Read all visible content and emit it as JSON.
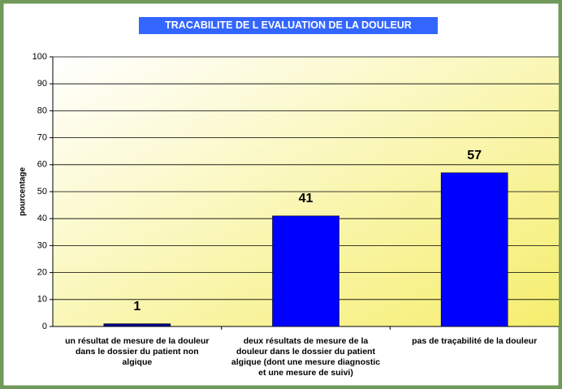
{
  "chart_data": {
    "type": "bar",
    "title": "TRACABILITE DE L EVALUATION DE LA DOULEUR",
    "ylabel": "pourcentage",
    "categories": [
      "un résultat de mesure de la douleur dans le dossier du patient non algique",
      "deux résultats de mesure de la douleur dans le dossier du patient algique (dont une mesure diagnostic et une mesure de suivi)",
      "pas de traçabilité de la douleur"
    ],
    "values": [
      1,
      41,
      57
    ],
    "colors": [
      "#00008b",
      "#0000ff",
      "#0000ff"
    ],
    "ylim": [
      0,
      100
    ],
    "yticks": [
      0,
      10,
      20,
      30,
      40,
      50,
      60,
      70,
      80,
      90,
      100
    ],
    "grid": true
  }
}
